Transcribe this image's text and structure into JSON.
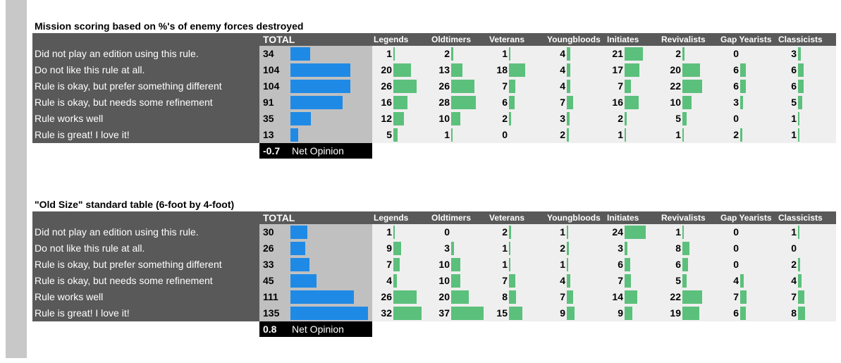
{
  "chart_data": [
    {
      "type": "table",
      "title": "Mission scoring based on %'s of enemy forces destroyed",
      "total_header": "TOTAL",
      "groups": [
        "Legends",
        "Oldtimers",
        "Veterans",
        "Youngbloods",
        "Initiates",
        "Revivalists",
        "Gap Yearists",
        "Classicists"
      ],
      "categories": [
        "Did not play an edition using this rule.",
        "Do not like this rule at all.",
        "Rule is okay, but prefer something different",
        "Rule is okay, but needs some refinement",
        "Rule works well",
        "Rule is great! I love it!"
      ],
      "totals": [
        34,
        104,
        104,
        91,
        35,
        13
      ],
      "group_values": [
        [
          1,
          2,
          1,
          4,
          21,
          2,
          0,
          3
        ],
        [
          20,
          13,
          18,
          4,
          17,
          20,
          6,
          6
        ],
        [
          26,
          26,
          7,
          4,
          7,
          22,
          6,
          6
        ],
        [
          16,
          28,
          6,
          7,
          16,
          10,
          3,
          5
        ],
        [
          12,
          10,
          2,
          3,
          2,
          5,
          0,
          1
        ],
        [
          5,
          1,
          0,
          2,
          1,
          1,
          2,
          1
        ]
      ],
      "net_opinion": "-0.7",
      "net_label": "Net Opinion",
      "colors": {
        "total_bar": "#1f8ae6",
        "group_bar": "#5bc07b"
      }
    },
    {
      "type": "table",
      "title": "\"Old Size\" standard table (6-foot by 4-foot)",
      "total_header": "TOTAL",
      "groups": [
        "Legends",
        "Oldtimers",
        "Veterans",
        "Youngbloods",
        "Initiates",
        "Revivalists",
        "Gap Yearists",
        "Classicists"
      ],
      "categories": [
        "Did not play an edition using this rule.",
        "Do not like this rule at all.",
        "Rule is okay, but prefer something different",
        "Rule is okay, but needs some refinement",
        "Rule works well",
        "Rule is great! I love it!"
      ],
      "totals": [
        30,
        26,
        33,
        45,
        111,
        135
      ],
      "group_values": [
        [
          1,
          0,
          2,
          1,
          24,
          1,
          0,
          1
        ],
        [
          9,
          3,
          1,
          2,
          3,
          8,
          0,
          0
        ],
        [
          7,
          10,
          1,
          1,
          6,
          6,
          0,
          2
        ],
        [
          4,
          10,
          7,
          4,
          7,
          5,
          4,
          4
        ],
        [
          26,
          20,
          8,
          7,
          14,
          22,
          7,
          7
        ],
        [
          32,
          37,
          15,
          9,
          9,
          19,
          6,
          8
        ]
      ],
      "net_opinion": "0.8",
      "net_label": "Net Opinion",
      "colors": {
        "total_bar": "#1f8ae6",
        "group_bar": "#5bc07b"
      }
    }
  ]
}
